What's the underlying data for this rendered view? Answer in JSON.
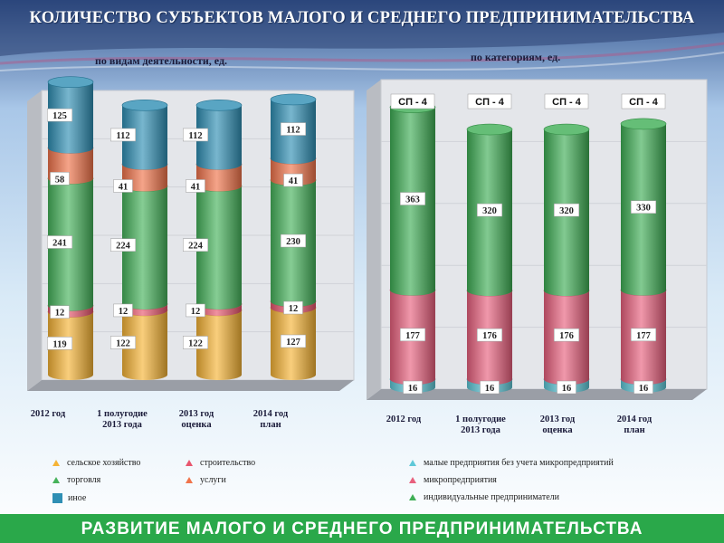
{
  "page": {
    "title": "КОЛИЧЕСТВО СУБЪЕКТОВ МАЛОГО И СРЕДНЕГО ПРЕДПРИНИМАТЕЛЬСТВА",
    "footer": "РАЗВИТИЕ МАЛОГО И СРЕДНЕГО ПРЕДПРИНИМАТЕЛЬСТВА"
  },
  "chart_data": [
    {
      "type": "bar",
      "stacked": true,
      "subtitle": "по видам деятельности, ед.",
      "categories": [
        "2012 год",
        "1 полугодие 2013 года",
        "2013 год оценка",
        "2014 год план"
      ],
      "series": [
        {
          "name": "сельское хозяйство",
          "values": [
            119,
            122,
            122,
            127
          ],
          "color": "#f5b335"
        },
        {
          "name": "строительство",
          "values": [
            12,
            12,
            12,
            12
          ],
          "color": "#e8556d"
        },
        {
          "name": "торговля",
          "values": [
            241,
            224,
            224,
            230
          ],
          "color": "#45b25a"
        },
        {
          "name": "услуги",
          "values": [
            58,
            41,
            41,
            41
          ],
          "color": "#f0734a"
        },
        {
          "name": "иное",
          "values": [
            125,
            112,
            112,
            112
          ],
          "color": "#2f8fb4"
        }
      ],
      "legend_position": "bottom",
      "grid": true
    },
    {
      "type": "bar",
      "stacked": true,
      "subtitle": "по категориям, ед.",
      "categories": [
        "2012 год",
        "1 полугодие 2013 года",
        "2013 год оценка",
        "2014 год план"
      ],
      "series": [
        {
          "name": "малые предприятия без учета микропредприятий",
          "values": [
            16,
            16,
            16,
            16
          ],
          "color": "#5fc8d8"
        },
        {
          "name": "микропредприятия",
          "values": [
            177,
            176,
            176,
            177
          ],
          "color": "#e8607d"
        },
        {
          "name": "индивидуальные предприниматели",
          "values": [
            363,
            320,
            320,
            330
          ],
          "color": "#3fae55"
        }
      ],
      "top_labels": [
        "СП - 4",
        "СП - 4",
        "СП - 4",
        "СП - 4"
      ],
      "legend_position": "bottom",
      "grid": true
    }
  ]
}
